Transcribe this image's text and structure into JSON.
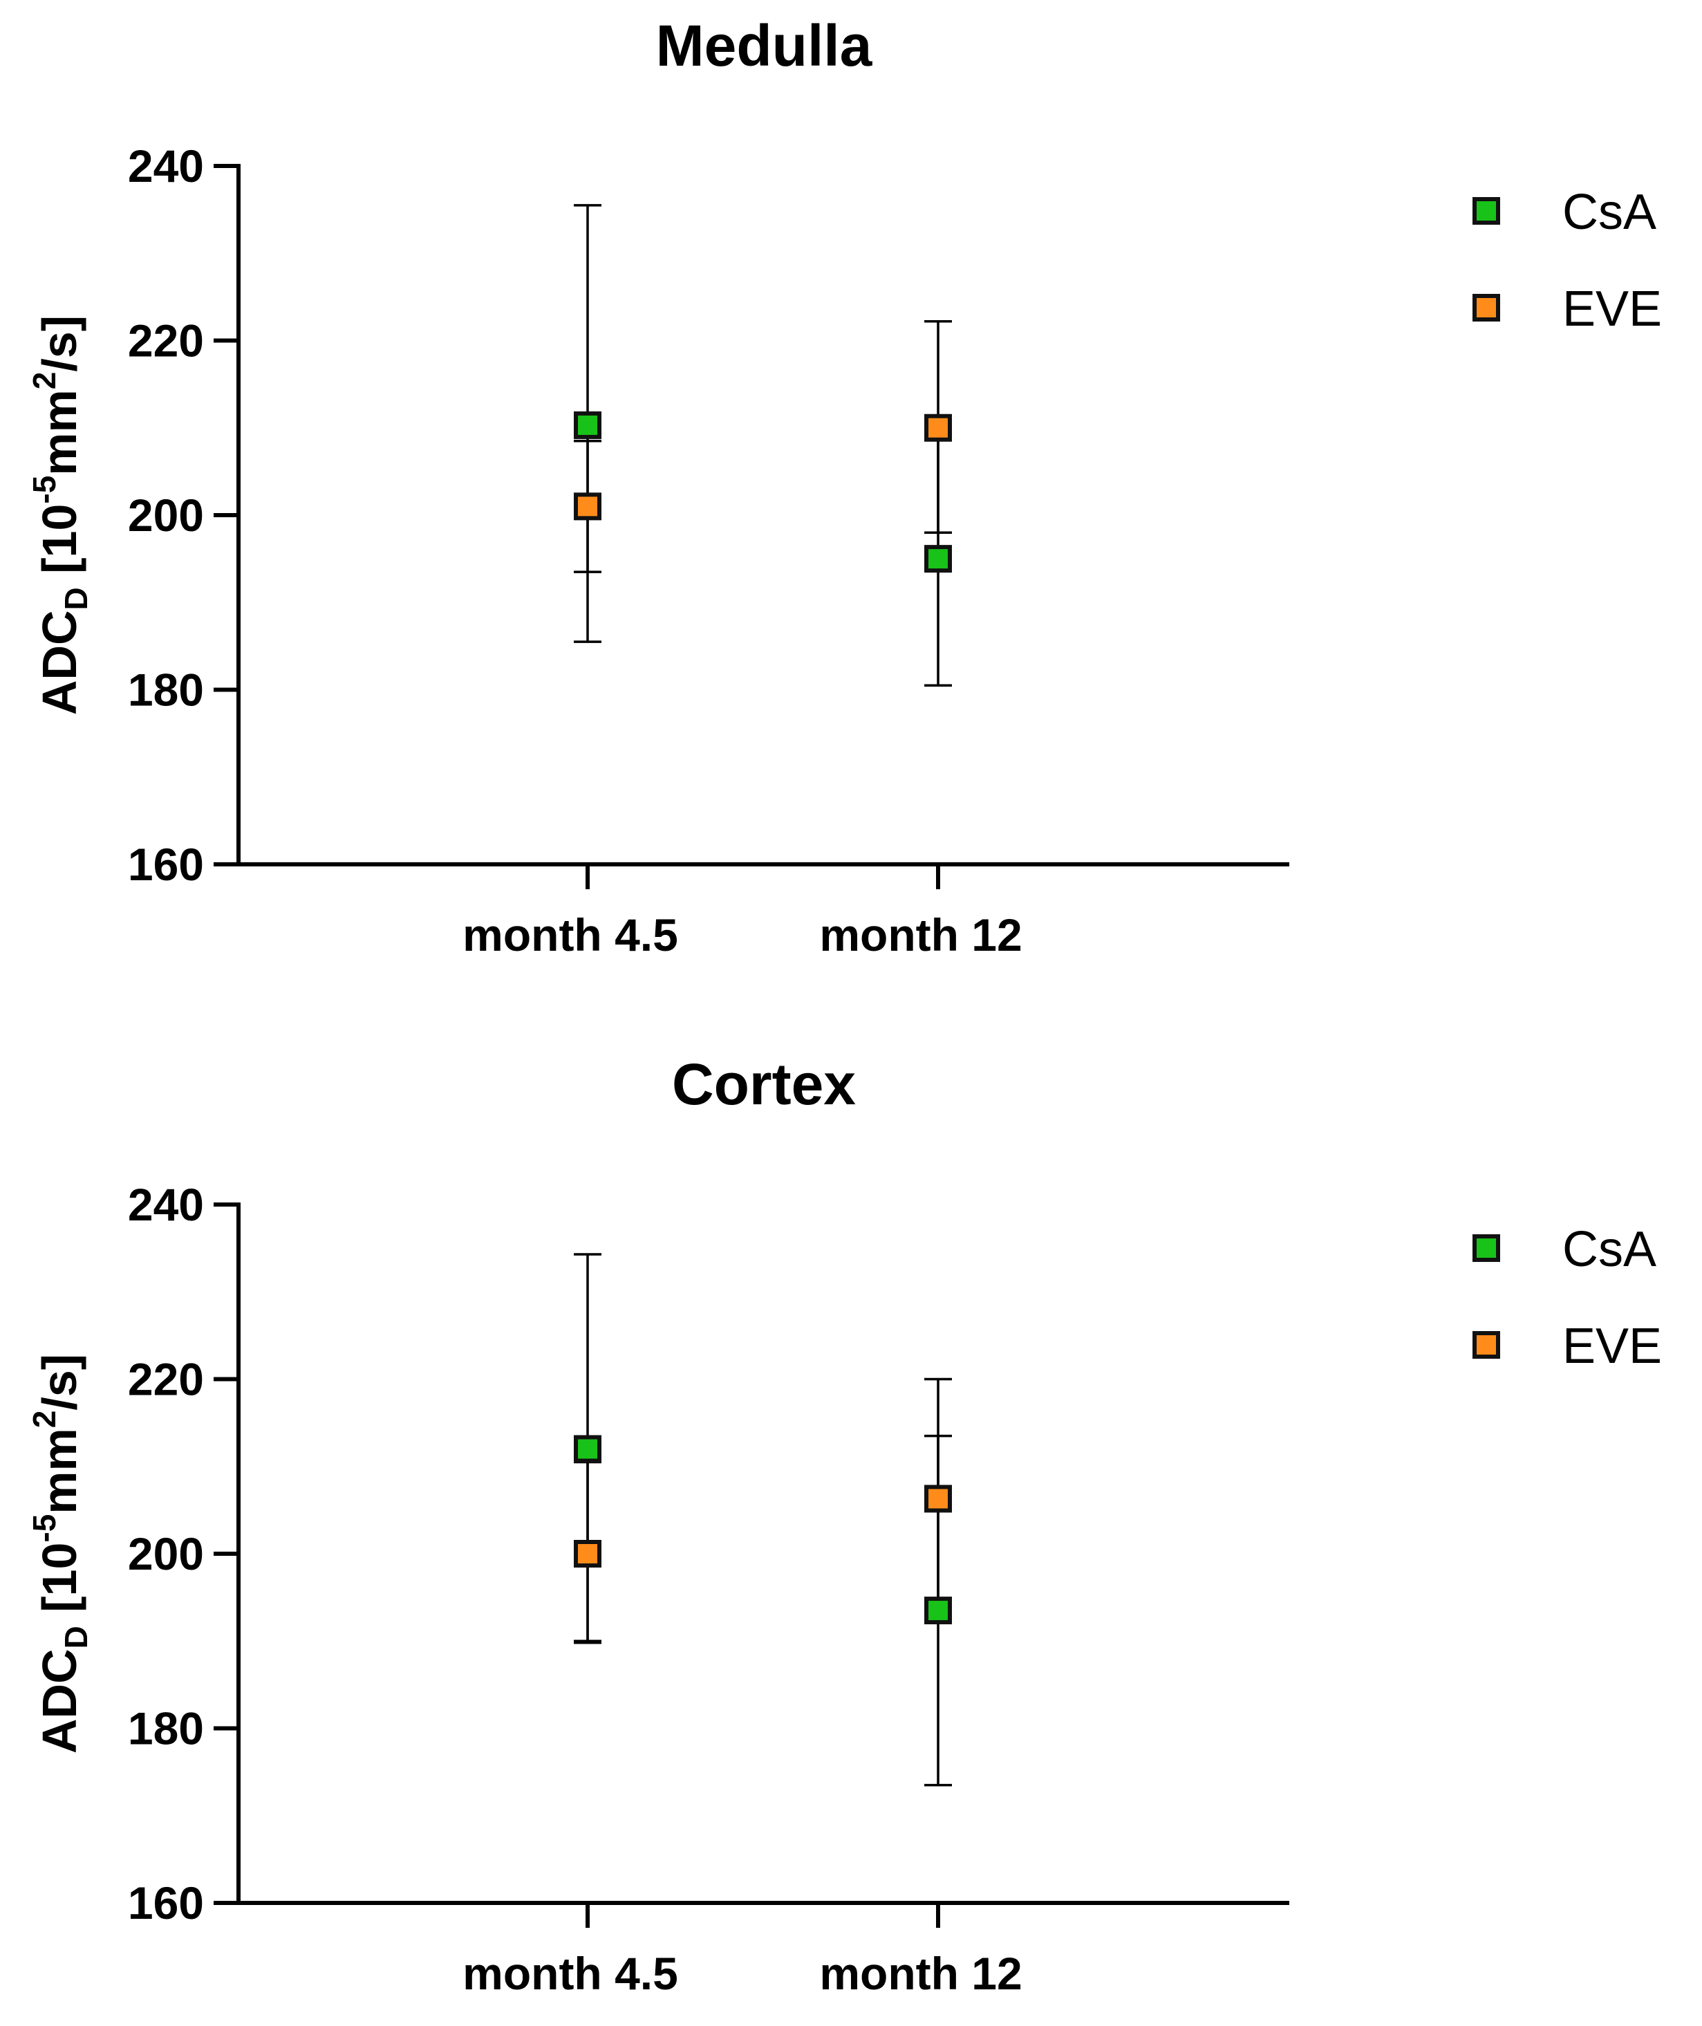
{
  "figure": {
    "colors": {
      "CsA": "#19c219",
      "EVE": "#ff8c1a",
      "axis": "#000000",
      "marker_edge": "#111111"
    },
    "marker": "square-icon"
  },
  "chart_data": [
    {
      "type": "scatter",
      "title": "Medulla",
      "categories": [
        "month 4.5",
        "month 12"
      ],
      "xlabel": "",
      "ylabel": {
        "main": "ADC",
        "subscript": "D",
        "unit_prefix": " [10",
        "exp1": "-5",
        "unit_mid": "mm",
        "exp2": "2",
        "unit_suffix": "/s]"
      },
      "ylim": [
        160,
        240
      ],
      "yticks": [
        "160",
        "180",
        "200",
        "220",
        "240"
      ],
      "ytick_values": [
        160,
        180,
        200,
        220,
        240
      ],
      "legend": [
        "CsA",
        "EVE"
      ],
      "legend_position": "right",
      "series": [
        {
          "name": "CsA",
          "values": [
            210.3,
            195.0
          ],
          "err_low": [
            185.5,
            180.5
          ],
          "err_high": [
            235.5,
            209.0
          ]
        },
        {
          "name": "EVE",
          "values": [
            201.0,
            210.0
          ],
          "err_low": [
            193.5,
            198.0
          ],
          "err_high": [
            208.5,
            222.2
          ]
        }
      ]
    },
    {
      "type": "scatter",
      "title": "Cortex",
      "categories": [
        "month 4.5",
        "month 12"
      ],
      "xlabel": "",
      "ylabel": {
        "main": "ADC",
        "subscript": "D",
        "unit_prefix": " [10",
        "exp1": "-5",
        "unit_mid": "mm",
        "exp2": "2",
        "unit_suffix": "/s]"
      },
      "ylim": [
        160,
        240
      ],
      "yticks": [
        "160",
        "180",
        "200",
        "220",
        "240"
      ],
      "ytick_values": [
        160,
        180,
        200,
        220,
        240
      ],
      "legend": [
        "CsA",
        "EVE"
      ],
      "legend_position": "right",
      "series": [
        {
          "name": "CsA",
          "values": [
            212.0,
            193.5
          ],
          "err_low": [
            189.8,
            173.5
          ],
          "err_high": [
            234.3,
            213.5
          ]
        },
        {
          "name": "EVE",
          "values": [
            200.0,
            206.3
          ],
          "err_low": [
            190.0,
            193.0
          ],
          "err_high": [
            210.5,
            220.0
          ]
        }
      ]
    }
  ]
}
